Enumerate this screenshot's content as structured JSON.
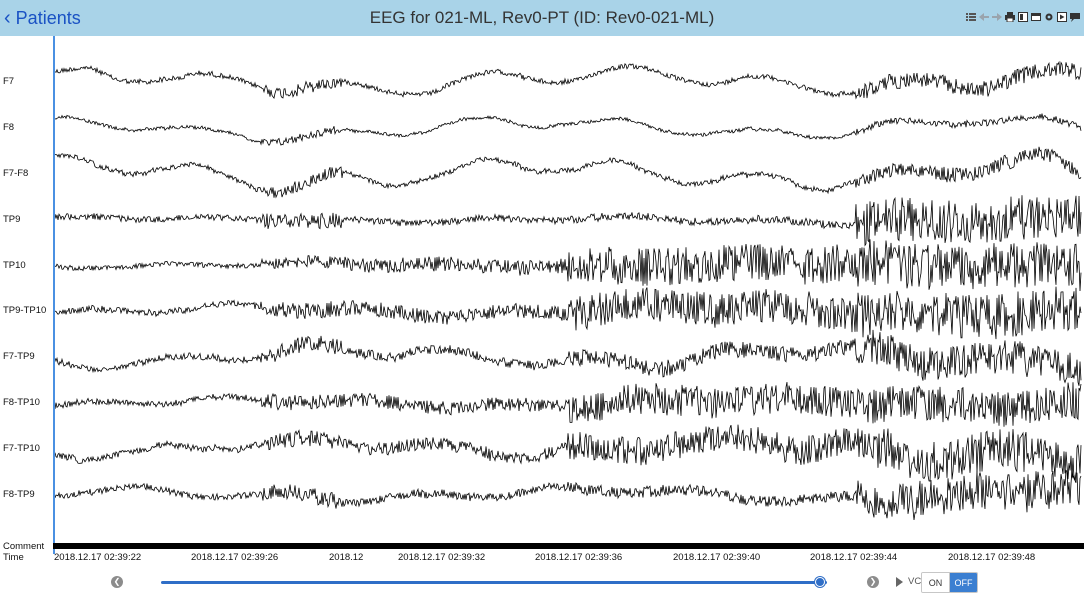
{
  "header": {
    "back_label": "Patients",
    "title": "EEG for 021-ML, Rev0-PT (ID: Rev0-021-ML)",
    "toolbar_icons": [
      "list-icon",
      "arrow-left-icon",
      "arrow-right-icon",
      "print-icon",
      "notes-icon",
      "monitor-icon",
      "settings-icon",
      "video-icon",
      "chat-icon"
    ]
  },
  "channels": [
    "F7",
    "F8",
    "F7-F8",
    "TP9",
    "TP10",
    "TP9-TP10",
    "F7-TP9",
    "F8-TP10",
    "F7-TP10",
    "F8-TP9"
  ],
  "rows": {
    "comment": "Comment",
    "time": "Time"
  },
  "time_labels": [
    "2018.12.17 02:39:22",
    "2018.12.17 02:39:26",
    "2018.12",
    "2018.12.17 02:39:32",
    "2018.12.17 02:39:36",
    "2018.12.17 02:39:40",
    "2018.12.17 02:39:44",
    "2018.12.17 02:39:48"
  ],
  "playback": {
    "prev_icon": "chevron-left-icon",
    "next_icon": "chevron-right-icon",
    "progress": 0.99,
    "vc_label": "VC",
    "on_label": "ON",
    "off_label": "OFF",
    "selected": "OFF"
  },
  "colors": {
    "header_bg": "#a9d3e8",
    "accent": "#3b7fd1",
    "trace": "#000000"
  }
}
